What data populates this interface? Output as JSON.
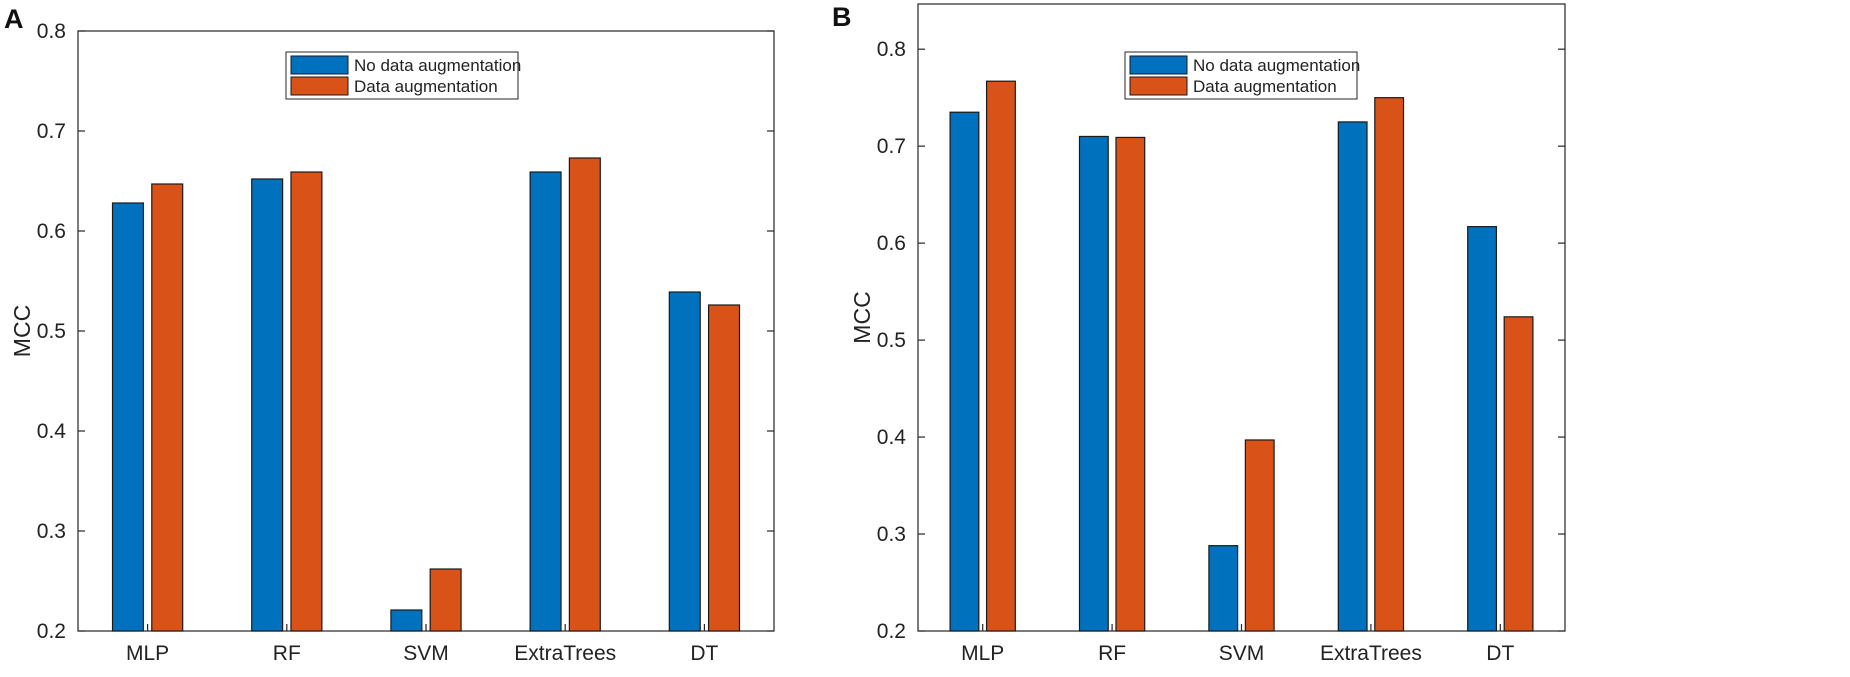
{
  "chart_data": [
    {
      "type": "bar",
      "panel_label": "A",
      "categories": [
        "MLP",
        "RF",
        "SVM",
        "ExtraTrees",
        "DT"
      ],
      "series": [
        {
          "name": "No data augmentation",
          "color": "#0072bd",
          "values": [
            0.628,
            0.652,
            0.221,
            0.659,
            0.539
          ]
        },
        {
          "name": "Data augmentation",
          "color": "#d95319",
          "values": [
            0.647,
            0.659,
            0.262,
            0.673,
            0.526
          ]
        }
      ],
      "title": "",
      "xlabel": "",
      "ylabel": "MCC",
      "ylim": [
        0.2,
        0.8
      ],
      "yticks": [
        "0.2",
        "0.3",
        "0.4",
        "0.5",
        "0.6",
        "0.7",
        "0.8"
      ],
      "ytick_values": [
        0.2,
        0.3,
        0.4,
        0.5,
        0.6,
        0.7,
        0.8
      ],
      "legend_position": "top-center",
      "grid": false
    },
    {
      "type": "bar",
      "panel_label": "B",
      "categories": [
        "MLP",
        "RF",
        "SVM",
        "ExtraTrees",
        "DT"
      ],
      "series": [
        {
          "name": "No data augmentation",
          "color": "#0072bd",
          "values": [
            0.735,
            0.71,
            0.288,
            0.725,
            0.617
          ]
        },
        {
          "name": "Data augmentation",
          "color": "#d95319",
          "values": [
            0.767,
            0.709,
            0.397,
            0.75,
            0.524
          ]
        }
      ],
      "title": "",
      "xlabel": "",
      "ylabel": "MCC",
      "ylim": [
        0.2,
        0.8466
      ],
      "yticks": [
        "0.2",
        "0.3",
        "0.4",
        "0.5",
        "0.6",
        "0.7",
        "0.8"
      ],
      "ytick_values": [
        0.2,
        0.3,
        0.4,
        0.5,
        0.6,
        0.7,
        0.8
      ],
      "legend_position": "top-center",
      "grid": false
    }
  ]
}
